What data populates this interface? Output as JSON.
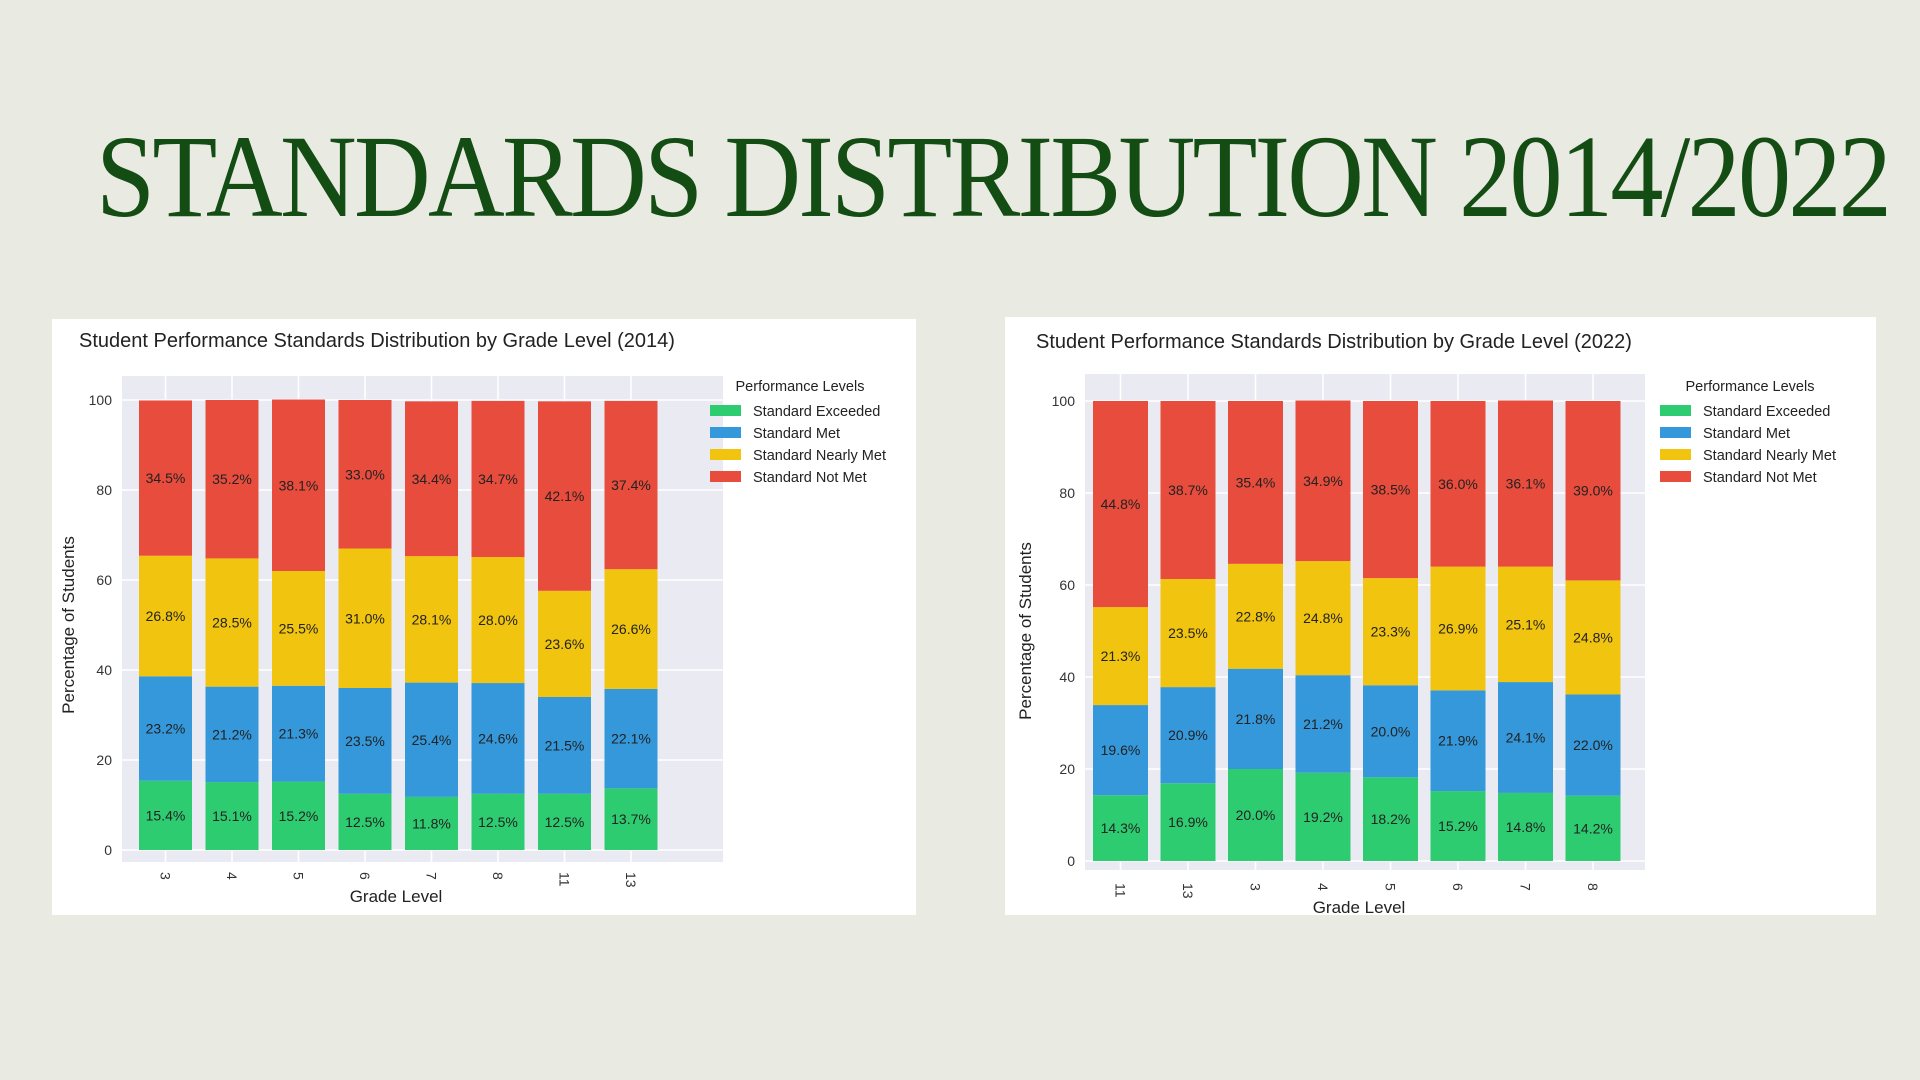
{
  "page": {
    "headline": "STANDARDS DISTRIBUTION 2014/2022",
    "background": "#e9eae2",
    "headline_color": "#144d14"
  },
  "colors": {
    "Standard Exceeded": "#2ecc71",
    "Standard Met": "#3498db",
    "Standard Nearly Met": "#f1c40f",
    "Standard Not Met": "#e74c3c",
    "plot_bg": "#eaeaf2"
  },
  "chart_data": [
    {
      "type": "bar",
      "stacked": true,
      "title": "Student Performance Standards Distribution by Grade Level (2014)",
      "xlabel": "Grade Level",
      "ylabel": "Percentage of Students",
      "ylim": [
        0,
        100
      ],
      "yticks": [
        0,
        20,
        40,
        60,
        80,
        100
      ],
      "grid": true,
      "legend_title": "Performance Levels",
      "legend_position": "right",
      "categories": [
        "3",
        "4",
        "5",
        "6",
        "7",
        "8",
        "11",
        "13"
      ],
      "series": [
        {
          "name": "Standard Exceeded",
          "values": [
            15.4,
            15.1,
            15.2,
            12.5,
            11.8,
            12.5,
            12.5,
            13.7
          ]
        },
        {
          "name": "Standard Met",
          "values": [
            23.2,
            21.2,
            21.3,
            23.5,
            25.4,
            24.6,
            21.5,
            22.1
          ]
        },
        {
          "name": "Standard Nearly Met",
          "values": [
            26.8,
            28.5,
            25.5,
            31.0,
            28.1,
            28.0,
            23.6,
            26.6
          ]
        },
        {
          "name": "Standard Not Met",
          "values": [
            34.5,
            35.2,
            38.1,
            33.0,
            34.4,
            34.7,
            42.1,
            37.4
          ]
        }
      ]
    },
    {
      "type": "bar",
      "stacked": true,
      "title": "Student Performance Standards Distribution by Grade Level (2022)",
      "xlabel": "Grade Level",
      "ylabel": "Percentage of Students",
      "ylim": [
        0,
        100
      ],
      "yticks": [
        0,
        20,
        40,
        60,
        80,
        100
      ],
      "grid": true,
      "legend_title": "Performance Levels",
      "legend_position": "right",
      "categories": [
        "11",
        "13",
        "3",
        "4",
        "5",
        "6",
        "7",
        "8"
      ],
      "series": [
        {
          "name": "Standard Exceeded",
          "values": [
            14.3,
            16.9,
            20.0,
            19.2,
            18.2,
            15.2,
            14.8,
            14.2
          ]
        },
        {
          "name": "Standard Met",
          "values": [
            19.6,
            20.9,
            21.8,
            21.2,
            20.0,
            21.9,
            24.1,
            22.0
          ]
        },
        {
          "name": "Standard Nearly Met",
          "values": [
            21.3,
            23.5,
            22.8,
            24.8,
            23.3,
            26.9,
            25.1,
            24.8
          ]
        },
        {
          "name": "Standard Not Met",
          "values": [
            44.8,
            38.7,
            35.4,
            34.9,
            38.5,
            36.0,
            36.1,
            39.0
          ]
        }
      ]
    }
  ]
}
